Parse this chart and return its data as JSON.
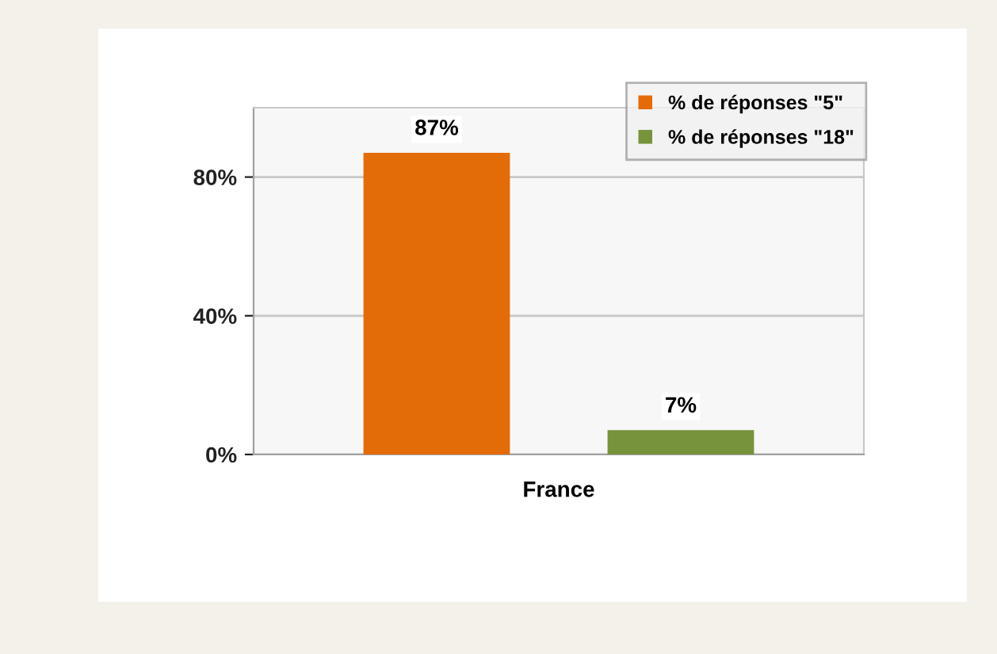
{
  "chart_data": {
    "type": "bar",
    "categories": [
      "France"
    ],
    "series": [
      {
        "name": "% de réponses \"5\"",
        "color": "#e36c09",
        "values": [
          87
        ],
        "value_labels": [
          "87%"
        ]
      },
      {
        "name": "% de réponses \"18\"",
        "color": "#77933c",
        "values": [
          7
        ],
        "value_labels": [
          "7%"
        ]
      }
    ],
    "ylim": [
      0,
      100
    ],
    "yticks": [
      {
        "value": 0,
        "label": "0%"
      },
      {
        "value": 40,
        "label": "40%"
      },
      {
        "value": 80,
        "label": "80%"
      }
    ],
    "grid": "y",
    "legend": "top right"
  }
}
